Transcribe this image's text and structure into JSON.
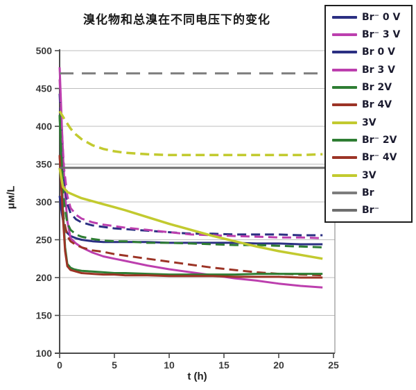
{
  "title": "溴化物和总溴在不同电压下的变化",
  "chart_data": {
    "type": "line",
    "title": "溴化物和总溴在不同电压下的变化",
    "xlabel": "t (h)",
    "ylabel": "μм/L",
    "xlim": [
      0,
      25
    ],
    "ylim": [
      100,
      500
    ],
    "x_ticks": [
      0,
      5,
      10,
      15,
      20,
      25
    ],
    "y_ticks": [
      100,
      150,
      200,
      250,
      300,
      350,
      400,
      450,
      500
    ],
    "grid": "horizontal-only",
    "legend_position": "top-right-overlay",
    "colors": {
      "grid": "#bdbdbd",
      "axis": "#4a4a4a",
      "plot_border_right": "#9a9a9a",
      "legend_border": "#1d1d1d",
      "background": "#ffffff"
    },
    "series": [
      {
        "name": "Br⁻ 0 V",
        "color": "#2b2f82",
        "style": "solid",
        "width": 3,
        "points": [
          [
            0,
            308
          ],
          [
            0.2,
            285
          ],
          [
            0.4,
            268
          ],
          [
            0.7,
            259
          ],
          [
            1,
            255
          ],
          [
            1.5,
            252
          ],
          [
            2,
            250
          ],
          [
            3,
            248
          ],
          [
            4,
            247
          ],
          [
            6,
            247
          ],
          [
            8,
            247
          ],
          [
            10,
            246
          ],
          [
            12,
            246
          ],
          [
            14,
            246
          ],
          [
            16,
            246
          ],
          [
            18,
            245
          ],
          [
            20,
            245
          ],
          [
            22,
            244
          ],
          [
            24,
            244
          ]
        ]
      },
      {
        "name": "Br⁻ 3 V",
        "color": "#bc3fae",
        "style": "solid",
        "width": 3,
        "points": [
          [
            0,
            478
          ],
          [
            0.1,
            440
          ],
          [
            0.2,
            400
          ],
          [
            0.35,
            350
          ],
          [
            0.5,
            310
          ],
          [
            0.7,
            275
          ],
          [
            1,
            252
          ],
          [
            1.5,
            245
          ],
          [
            2,
            240
          ],
          [
            3,
            233
          ],
          [
            4,
            228
          ],
          [
            5,
            225
          ],
          [
            6,
            222
          ],
          [
            8,
            216
          ],
          [
            10,
            211
          ],
          [
            12,
            207
          ],
          [
            14,
            203
          ],
          [
            16,
            199
          ],
          [
            18,
            196
          ],
          [
            20,
            192
          ],
          [
            22,
            189
          ],
          [
            24,
            187
          ]
        ]
      },
      {
        "name": "Br 0 V",
        "color": "#2b2f82",
        "style": "dashed",
        "width": 3,
        "points": [
          [
            0,
            443
          ],
          [
            0.2,
            380
          ],
          [
            0.4,
            330
          ],
          [
            0.7,
            298
          ],
          [
            1,
            285
          ],
          [
            1.5,
            277
          ],
          [
            2,
            273
          ],
          [
            3,
            269
          ],
          [
            4,
            267
          ],
          [
            5,
            265
          ],
          [
            6,
            264
          ],
          [
            8,
            262
          ],
          [
            10,
            260
          ],
          [
            12,
            258
          ],
          [
            14,
            258
          ],
          [
            16,
            257
          ],
          [
            18,
            257
          ],
          [
            20,
            257
          ],
          [
            22,
            256
          ],
          [
            24,
            256
          ]
        ]
      },
      {
        "name": "Br 3 V",
        "color": "#bc3fae",
        "style": "dashed",
        "width": 3,
        "points": [
          [
            0,
            462
          ],
          [
            0.2,
            395
          ],
          [
            0.4,
            345
          ],
          [
            0.7,
            308
          ],
          [
            1,
            292
          ],
          [
            1.5,
            283
          ],
          [
            2,
            278
          ],
          [
            3,
            273
          ],
          [
            4,
            270
          ],
          [
            5,
            268
          ],
          [
            6,
            266
          ],
          [
            8,
            263
          ],
          [
            10,
            260
          ],
          [
            12,
            257
          ],
          [
            14,
            256
          ],
          [
            16,
            255
          ],
          [
            18,
            254
          ],
          [
            20,
            253
          ],
          [
            22,
            253
          ],
          [
            24,
            252
          ]
        ]
      },
      {
        "name": "Br 2V",
        "color": "#2e7d33",
        "style": "dashed",
        "width": 3,
        "points": [
          [
            0,
            415
          ],
          [
            0.2,
            350
          ],
          [
            0.4,
            300
          ],
          [
            0.7,
            272
          ],
          [
            1,
            263
          ],
          [
            1.5,
            257
          ],
          [
            2,
            254
          ],
          [
            3,
            251
          ],
          [
            4,
            249
          ],
          [
            5,
            248
          ],
          [
            6,
            248
          ],
          [
            8,
            246
          ],
          [
            10,
            246
          ],
          [
            12,
            245
          ],
          [
            14,
            244
          ],
          [
            16,
            243
          ],
          [
            18,
            243
          ],
          [
            20,
            242
          ],
          [
            22,
            241
          ],
          [
            24,
            240
          ]
        ]
      },
      {
        "name": "Br 4V",
        "color": "#9c3426",
        "style": "dashed",
        "width": 3,
        "points": [
          [
            0,
            362
          ],
          [
            0.2,
            310
          ],
          [
            0.4,
            275
          ],
          [
            0.7,
            255
          ],
          [
            1,
            248
          ],
          [
            1.5,
            243
          ],
          [
            2,
            240
          ],
          [
            3,
            236
          ],
          [
            4,
            234
          ],
          [
            5,
            231
          ],
          [
            6,
            229
          ],
          [
            8,
            225
          ],
          [
            10,
            221
          ],
          [
            12,
            217
          ],
          [
            14,
            213
          ],
          [
            16,
            210
          ],
          [
            18,
            207
          ],
          [
            20,
            205
          ],
          [
            22,
            204
          ],
          [
            24,
            203
          ]
        ]
      },
      {
        "name": "3V",
        "color": "#c2ca2f",
        "style": "dashed",
        "width": 3.5,
        "points": [
          [
            0,
            420
          ],
          [
            0.5,
            408
          ],
          [
            1,
            397
          ],
          [
            1.5,
            389
          ],
          [
            2,
            383
          ],
          [
            3,
            375
          ],
          [
            4,
            370
          ],
          [
            5,
            367
          ],
          [
            6,
            365
          ],
          [
            8,
            363
          ],
          [
            10,
            362
          ],
          [
            12,
            362
          ],
          [
            14,
            362
          ],
          [
            16,
            362
          ],
          [
            18,
            362
          ],
          [
            20,
            362
          ],
          [
            22,
            362
          ],
          [
            24,
            363
          ]
        ]
      },
      {
        "name": "Br⁻ 2V",
        "color": "#2e7d33",
        "style": "solid",
        "width": 3,
        "points": [
          [
            0,
            415
          ],
          [
            0.15,
            350
          ],
          [
            0.3,
            290
          ],
          [
            0.5,
            240
          ],
          [
            0.7,
            218
          ],
          [
            1,
            213
          ],
          [
            1.3,
            211
          ],
          [
            1.6,
            210
          ],
          [
            2,
            209
          ],
          [
            3,
            208
          ],
          [
            4,
            207
          ],
          [
            5,
            206
          ],
          [
            6,
            206
          ],
          [
            8,
            205
          ],
          [
            10,
            204
          ],
          [
            12,
            204
          ],
          [
            14,
            204
          ],
          [
            16,
            204
          ],
          [
            18,
            205
          ],
          [
            20,
            205
          ],
          [
            22,
            205
          ],
          [
            24,
            205
          ]
        ]
      },
      {
        "name": "Br⁻ 4V",
        "color": "#9c3426",
        "style": "solid",
        "width": 3,
        "points": [
          [
            0,
            362
          ],
          [
            0.15,
            320
          ],
          [
            0.3,
            280
          ],
          [
            0.5,
            235
          ],
          [
            0.7,
            215
          ],
          [
            1,
            210
          ],
          [
            1.5,
            208
          ],
          [
            2,
            206
          ],
          [
            3,
            205
          ],
          [
            4,
            204
          ],
          [
            5,
            204
          ],
          [
            6,
            203
          ],
          [
            8,
            203
          ],
          [
            10,
            202
          ],
          [
            12,
            202
          ],
          [
            14,
            202
          ],
          [
            16,
            201
          ],
          [
            18,
            201
          ],
          [
            20,
            201
          ],
          [
            22,
            200
          ],
          [
            24,
            200
          ]
        ]
      },
      {
        "name": "3V",
        "color": "#c2ca2f",
        "style": "solid",
        "width": 3.5,
        "points": [
          [
            0,
            345
          ],
          [
            0.3,
            320
          ],
          [
            0.7,
            313
          ],
          [
            1.5,
            308
          ],
          [
            2,
            305
          ],
          [
            3,
            301
          ],
          [
            4,
            297
          ],
          [
            5,
            293
          ],
          [
            6,
            289
          ],
          [
            8,
            280
          ],
          [
            10,
            271
          ],
          [
            12,
            263
          ],
          [
            14,
            255
          ],
          [
            16,
            248
          ],
          [
            18,
            241
          ],
          [
            20,
            235
          ],
          [
            22,
            230
          ],
          [
            24,
            225
          ]
        ]
      },
      {
        "name": "Br",
        "color": "#7d7d7d",
        "style": "long-dashed",
        "width": 3,
        "points": [
          [
            0,
            470
          ],
          [
            24.3,
            470
          ]
        ]
      },
      {
        "name": "Br⁻",
        "color": "#6e6e6e",
        "style": "solid",
        "width": 3,
        "points": [
          [
            0,
            345
          ],
          [
            24.3,
            345
          ]
        ]
      }
    ]
  }
}
